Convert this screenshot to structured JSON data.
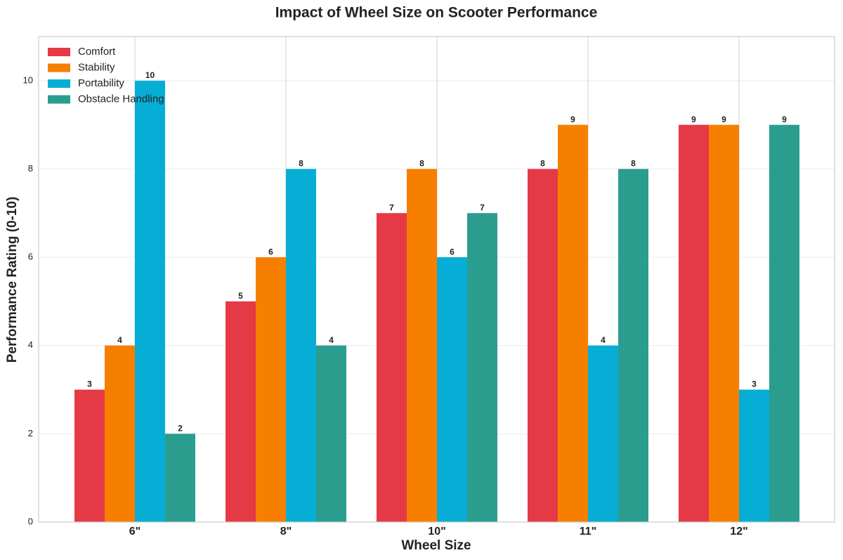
{
  "chart_data": {
    "type": "bar",
    "title": "Impact of Wheel Size on Scooter Performance",
    "x_label": "Wheel Size",
    "y_label": "Performance Rating (0-10)",
    "categories": [
      "6\"",
      "8\"",
      "10\"",
      "11\"",
      "12\""
    ],
    "series": [
      {
        "name": "Comfort",
        "color": "#e63946",
        "values": [
          3,
          5,
          7,
          8,
          9
        ]
      },
      {
        "name": "Stability",
        "color": "#f77f00",
        "values": [
          4,
          6,
          8,
          9,
          9
        ]
      },
      {
        "name": "Portability",
        "color": "#06aed5",
        "values": [
          10,
          8,
          6,
          4,
          3
        ]
      },
      {
        "name": "Obstacle Handling",
        "color": "#2a9d8f",
        "values": [
          2,
          4,
          7,
          8,
          9
        ]
      }
    ],
    "ylim": [
      0,
      11
    ],
    "yticks": [
      0,
      2,
      4,
      6,
      8,
      10
    ],
    "grid": true,
    "legend": "upper-left"
  }
}
